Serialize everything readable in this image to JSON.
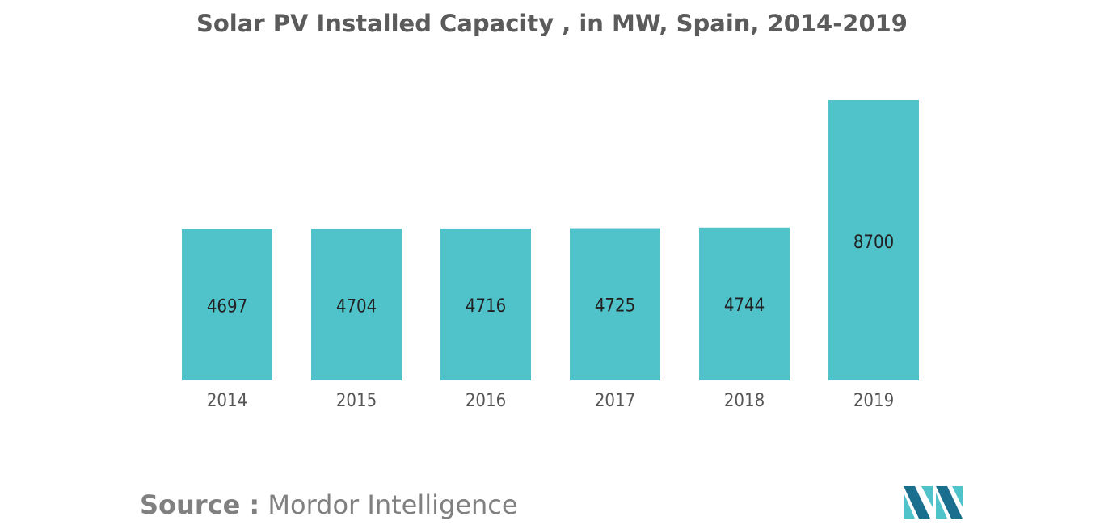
{
  "chart_data": {
    "type": "bar",
    "title": "Solar PV Installed Capacity , in MW, Spain, 2014-2019",
    "categories": [
      "2014",
      "2015",
      "2016",
      "2017",
      "2018",
      "2019"
    ],
    "values": [
      4697,
      4704,
      4716,
      4725,
      4744,
      8700
    ],
    "value_labels": [
      "4697",
      "4704",
      "4716",
      "4725",
      "4744",
      "8700"
    ],
    "xlabel": "",
    "ylabel": "",
    "ylim": [
      0,
      8700
    ],
    "grid": false,
    "legend": "none",
    "bar_color": "#4fc3c9"
  },
  "footer": {
    "source_label": "Source :",
    "source_name": "Mordor Intelligence"
  },
  "logo": {
    "icon": "mordor-intelligence-logo",
    "colors": [
      "#1a6e8e",
      "#4fc3c9"
    ]
  }
}
